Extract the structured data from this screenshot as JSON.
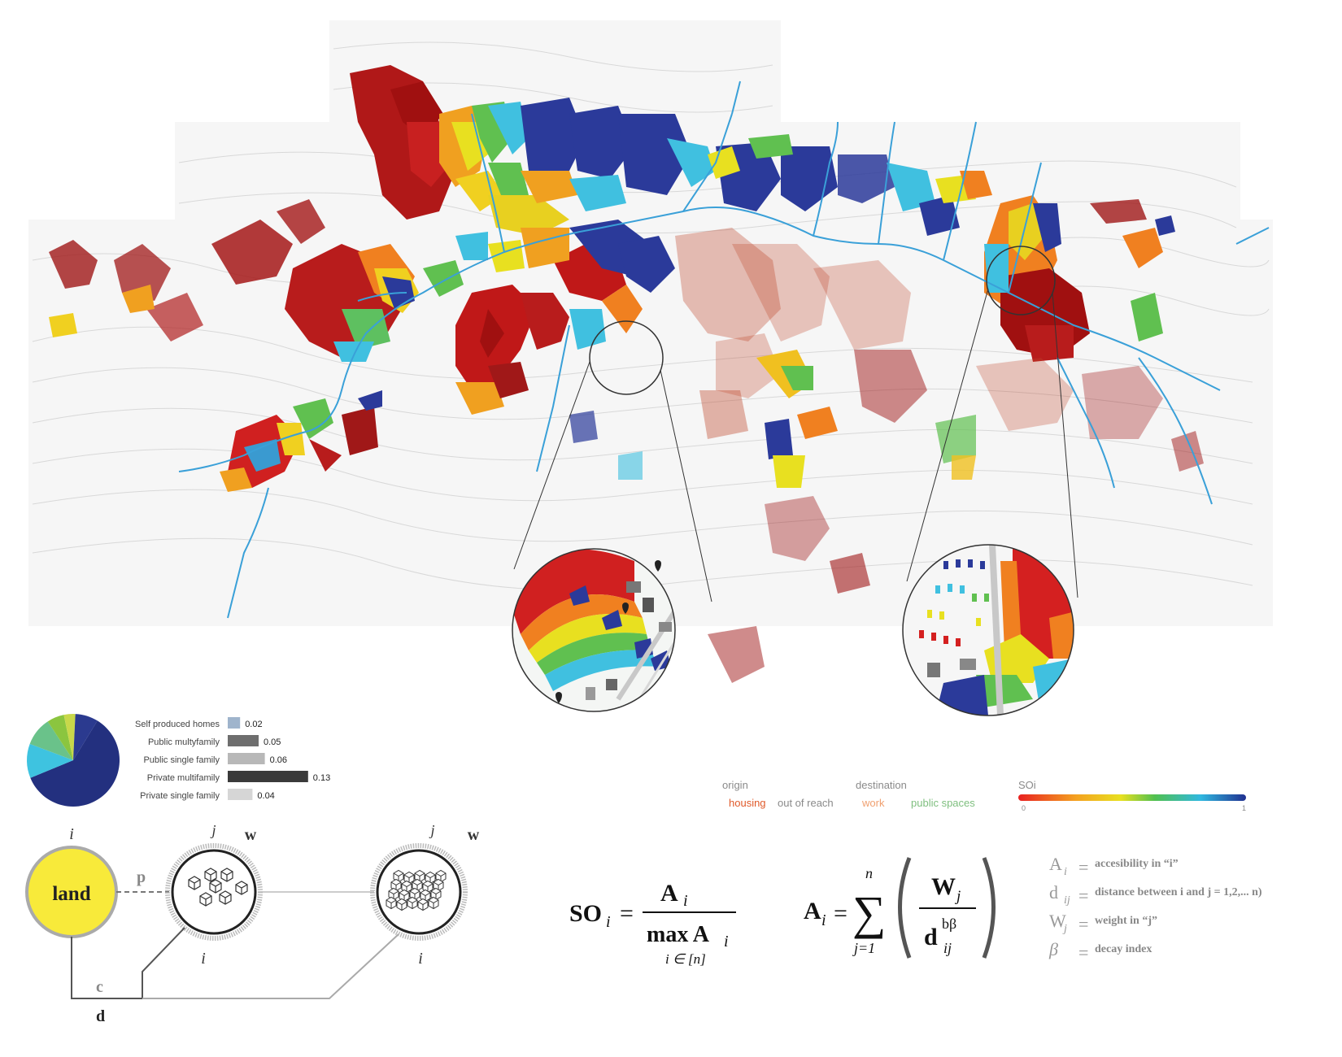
{
  "bar_chart": {
    "items": [
      {
        "label": "Self produced homes",
        "value": 0.02,
        "value_label": "0.02",
        "color": "#9fb4cc"
      },
      {
        "label": "Public multyfamily",
        "value": 0.05,
        "value_label": "0.05",
        "color": "#6e6e6e"
      },
      {
        "label": "Public single family",
        "value": 0.06,
        "value_label": "0.06",
        "color": "#b8b8b8"
      },
      {
        "label": "Private multifamily",
        "value": 0.13,
        "value_label": "0.13",
        "color": "#3a3a3a"
      },
      {
        "label": "Private single family",
        "value": 0.04,
        "value_label": "0.04",
        "color": "#d6d6d6"
      }
    ]
  },
  "pie": {
    "slices": [
      {
        "value": 0.6,
        "color": "#23307f"
      },
      {
        "value": 0.12,
        "color": "#3ec3e0"
      },
      {
        "value": 0.1,
        "color": "#6ac28a"
      },
      {
        "value": 0.06,
        "color": "#8bc53f"
      },
      {
        "value": 0.04,
        "color": "#c8d84a"
      },
      {
        "value": 0.08,
        "color": "#2b3a8f"
      }
    ]
  },
  "legend": {
    "origin_label": "origin",
    "housing_label": "housing",
    "out_of_reach_label": "out of reach",
    "destination_label": "destination",
    "work_label": "work",
    "public_spaces_label": "public  spaces",
    "soi_label": "SOi",
    "scale_min": "0",
    "scale_max": "1",
    "colors": {
      "housing": "#e05a2a",
      "out_of_reach": "#8a8a8a",
      "work": "#f0a070",
      "public_spaces": "#7fbf7f"
    }
  },
  "diagram": {
    "land_label": "land",
    "i_label": "i",
    "j_label": "j",
    "w_label": "w",
    "p_label": "p",
    "c_label": "c",
    "d_label": "d"
  },
  "formula1": {
    "lhs": "SO",
    "lhs_sub": "i",
    "numerator": "A",
    "numerator_sub": "i",
    "denominator": "max A",
    "denominator_sub": "i",
    "under": "i ∈ [n]"
  },
  "formula2": {
    "lhs": "A",
    "lhs_sub": "i",
    "sum_top": "n",
    "sum_bottom": "j=1",
    "numerator": "W",
    "numerator_sub": "j",
    "denominator": "d",
    "denominator_sup": "bβ",
    "denominator_sub": "ij"
  },
  "definitions": [
    {
      "symbol": "A",
      "sub": "i",
      "text": "accesibility in “i”"
    },
    {
      "symbol": "d",
      "sub": "ij",
      "text": "distance between i and j = 1,2,... n)"
    },
    {
      "symbol": "W",
      "sub": "j",
      "text": "weight in  “j”"
    },
    {
      "symbol": "β",
      "sub": "",
      "text": "decay index"
    }
  ]
}
